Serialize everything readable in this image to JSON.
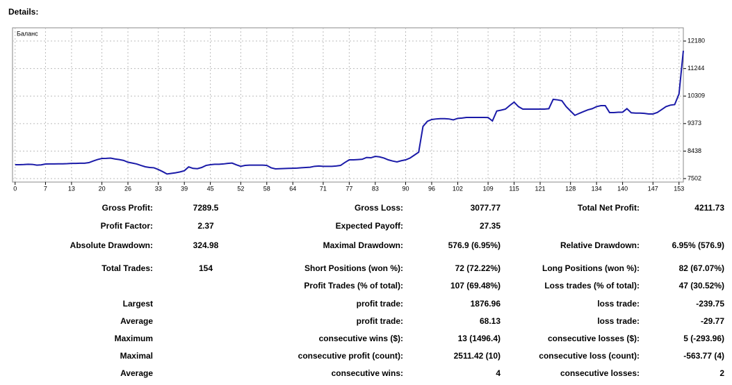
{
  "heading": "Details:",
  "chart_data": {
    "type": "line",
    "label": "Баланс",
    "x": [
      0,
      1,
      2,
      3,
      4,
      5,
      6,
      7,
      8,
      9,
      10,
      11,
      12,
      13,
      14,
      15,
      16,
      17,
      18,
      19,
      20,
      21,
      22,
      23,
      24,
      25,
      26,
      27,
      28,
      29,
      30,
      31,
      32,
      33,
      34,
      35,
      36,
      37,
      38,
      39,
      40,
      41,
      42,
      43,
      44,
      45,
      46,
      47,
      48,
      49,
      50,
      51,
      52,
      53,
      54,
      55,
      56,
      57,
      58,
      59,
      60,
      61,
      62,
      63,
      64,
      65,
      66,
      67,
      68,
      69,
      70,
      71,
      72,
      73,
      74,
      75,
      76,
      77,
      78,
      79,
      80,
      81,
      82,
      83,
      84,
      85,
      86,
      87,
      88,
      89,
      90,
      91,
      92,
      93,
      94,
      95,
      96,
      97,
      98,
      99,
      100,
      101,
      102,
      103,
      104,
      105,
      106,
      107,
      108,
      109,
      110,
      111,
      112,
      113,
      114,
      115,
      116,
      117,
      118,
      119,
      120,
      121,
      122,
      123,
      124,
      125,
      126,
      127,
      128,
      129,
      130,
      131,
      132,
      133,
      134,
      135,
      136,
      137,
      138,
      139,
      140,
      141,
      142,
      143,
      144,
      145,
      146,
      147,
      148,
      149,
      150,
      151,
      152,
      153,
      154
    ],
    "series": [
      {
        "name": "Баланс",
        "color": "#1a1aa8",
        "values": [
          7975,
          7975,
          7980,
          7990,
          7985,
          7960,
          7970,
          7998,
          8000,
          8000,
          8005,
          8005,
          8010,
          8020,
          8020,
          8025,
          8025,
          8045,
          8100,
          8150,
          8187,
          8190,
          8200,
          8170,
          8150,
          8120,
          8060,
          8030,
          8000,
          7950,
          7904,
          7880,
          7870,
          7810,
          7740,
          7660,
          7680,
          7700,
          7730,
          7770,
          7900,
          7850,
          7840,
          7880,
          7950,
          7975,
          7990,
          7990,
          8000,
          8020,
          8030,
          7970,
          7920,
          7951,
          7960,
          7960,
          7960,
          7960,
          7950,
          7870,
          7833,
          7840,
          7845,
          7850,
          7855,
          7860,
          7870,
          7880,
          7890,
          7920,
          7930,
          7920,
          7920,
          7920,
          7930,
          7950,
          8050,
          8140,
          8140,
          8150,
          8160,
          8220,
          8210,
          8258,
          8240,
          8200,
          8140,
          8100,
          8069,
          8110,
          8140,
          8200,
          8300,
          8400,
          9275,
          9450,
          9511,
          9530,
          9540,
          9540,
          9530,
          9500,
          9550,
          9560,
          9582,
          9582,
          9582,
          9582,
          9582,
          9580,
          9464,
          9800,
          9830,
          9866,
          9990,
          10102,
          9950,
          9866,
          9866,
          9866,
          9866,
          9866,
          9866,
          9880,
          10197,
          10180,
          10150,
          9950,
          9800,
          9653,
          9720,
          9780,
          9840,
          9880,
          9950,
          9984,
          9984,
          9748,
          9748,
          9760,
          9760,
          9880,
          9740,
          9730,
          9730,
          9720,
          9700,
          9700,
          9750,
          9850,
          9950,
          10000,
          10020,
          10380,
          11850
        ]
      }
    ],
    "xlim": [
      -0.6,
      154
    ],
    "xticks": [
      0,
      7,
      13,
      20,
      26,
      33,
      39,
      45,
      52,
      58,
      64,
      71,
      77,
      83,
      90,
      96,
      102,
      109,
      115,
      121,
      128,
      134,
      140,
      147,
      153
    ],
    "ylim": [
      7384,
      12630
    ],
    "yticks": [
      7502,
      8438,
      9373,
      10309,
      11244,
      12180
    ],
    "grid": true
  },
  "table": {
    "rows": [
      [
        "Gross Profit:",
        "7289.5",
        "Gross Loss:",
        "3077.77",
        "Total Net Profit:",
        "4211.73"
      ],
      [
        "Profit Factor:",
        "2.37",
        "Expected Payoff:",
        "27.35"
      ],
      [
        "Absolute Drawdown:",
        "324.98",
        "Maximal Drawdown:",
        "576.9 (6.95%)",
        "Relative Drawdown:",
        "6.95% (576.9)"
      ],
      [
        "Total Trades:",
        "154",
        "Short Positions (won %):",
        "72 (72.22%)",
        "Long Positions (won %):",
        "82 (67.07%)"
      ],
      [
        null,
        null,
        "Profit Trades (% of total):",
        "107 (69.48%)",
        "Loss trades (% of total):",
        "47 (30.52%)"
      ],
      [
        "Largest",
        null,
        "profit trade:",
        "1876.96",
        "loss trade:",
        "-239.75"
      ],
      [
        "Average",
        null,
        "profit trade:",
        "68.13",
        "loss trade:",
        "-29.77"
      ],
      [
        "Maximum",
        null,
        "consecutive wins ($):",
        "13 (1496.4)",
        "consecutive losses ($):",
        "5 (-293.96)"
      ],
      [
        "Maximal",
        null,
        "consecutive profit (count):",
        "2511.42 (10)",
        "consecutive loss (count):",
        "-563.77 (4)"
      ],
      [
        "Average",
        null,
        "consecutive wins:",
        "4",
        "consecutive losses:",
        "2"
      ]
    ]
  }
}
